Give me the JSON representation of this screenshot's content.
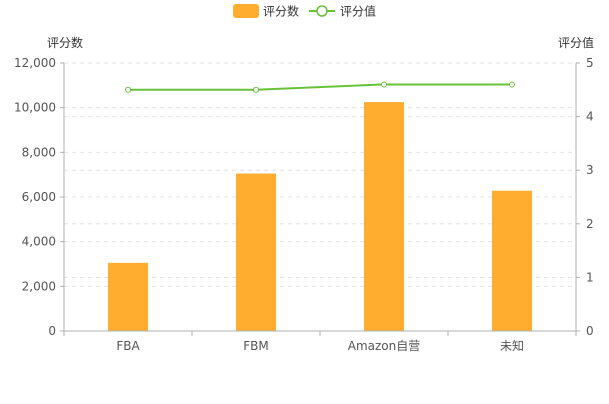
{
  "chart_data": {
    "type": "bar",
    "categories": [
      "FBA",
      "FBM",
      "Amazon自营",
      "未知"
    ],
    "series": [
      {
        "name": "评分数",
        "type": "bar",
        "axis": "left",
        "color": "#FFAD2F",
        "values": [
          3050,
          7050,
          10250,
          6280
        ]
      },
      {
        "name": "评分值",
        "type": "line",
        "axis": "right",
        "color": "#67C23A",
        "values": [
          4.5,
          4.5,
          4.6,
          4.6
        ]
      }
    ],
    "y_left": {
      "label": "评分数",
      "range": [
        0,
        12000
      ],
      "ticks": [
        0,
        2000,
        4000,
        6000,
        8000,
        10000,
        12000
      ],
      "tick_labels": [
        "0",
        "2,000",
        "4,000",
        "6,000",
        "8,000",
        "10,000",
        "12,000"
      ]
    },
    "y_right": {
      "label": "评分值",
      "range": [
        0,
        5
      ],
      "ticks": [
        0,
        1,
        2,
        3,
        4,
        5
      ],
      "tick_labels": [
        "0",
        "1",
        "2",
        "3",
        "4",
        "5"
      ]
    },
    "grid": true,
    "legend_position": "top-center"
  }
}
